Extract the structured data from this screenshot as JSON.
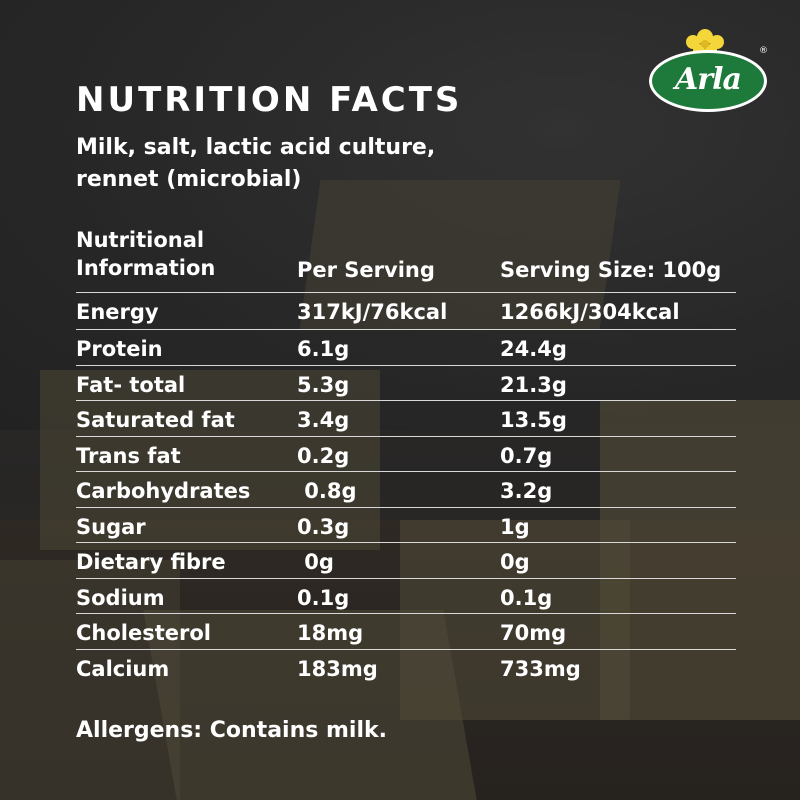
{
  "brand": {
    "name": "Arla",
    "colors": {
      "green": "#1e7a3a",
      "yellow": "#f5d63a"
    }
  },
  "title": "NUTRITION FACTS",
  "ingredients": "Milk, salt, lactic acid culture, rennet (microbial)",
  "table": {
    "headers": {
      "nutrient": "Nutritional Information",
      "per_serving": "Per Serving",
      "per_100g": "Serving Size: 100g"
    },
    "rows": [
      {
        "nutrient": "Energy",
        "per_serving": "317kJ/76kcal",
        "per_100g": "1266kJ/304kcal"
      },
      {
        "nutrient": "Protein",
        "per_serving": "6.1g",
        "per_100g": "24.4g"
      },
      {
        "nutrient": "Fat- total",
        "per_serving": "5.3g",
        "per_100g": "21.3g"
      },
      {
        "nutrient": "Saturated fat",
        "per_serving": "3.4g",
        "per_100g": "13.5g"
      },
      {
        "nutrient": "Trans fat",
        "per_serving": "0.2g",
        "per_100g": "0.7g"
      },
      {
        "nutrient": "Carbohydrates",
        "per_serving": " 0.8g",
        "per_100g": "3.2g"
      },
      {
        "nutrient": "Sugar",
        "per_serving": "0.3g",
        "per_100g": "1g"
      },
      {
        "nutrient": "Dietary fibre",
        "per_serving": " 0g",
        "per_100g": "0g"
      },
      {
        "nutrient": "Sodium",
        "per_serving": "0.1g",
        "per_100g": "0.1g"
      },
      {
        "nutrient": "Cholesterol",
        "per_serving": "18mg",
        "per_100g": "70mg"
      },
      {
        "nutrient": "Calcium",
        "per_serving": "183mg",
        "per_100g": "733mg"
      }
    ]
  },
  "allergens": "Allergens: Contains milk."
}
